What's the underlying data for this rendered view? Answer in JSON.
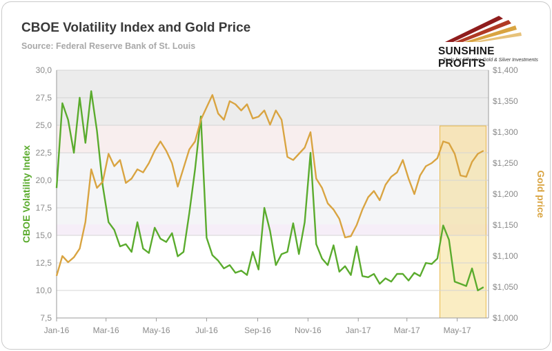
{
  "chart_data": {
    "type": "line",
    "title": "CBOE Volatility Index and Gold Price",
    "subtitle": "Source: Federal Reserve Bank of St. Louis",
    "x_labels": [
      "Jan-16",
      "Mar-16",
      "May-16",
      "Jul-16",
      "Sep-16",
      "Nov-16",
      "Jan-17",
      "Mar-17",
      "May-17"
    ],
    "y_left": {
      "label": "CBOE Volatility Index",
      "min": 7.5,
      "max": 30,
      "ticks": [
        "7,5",
        "10,0",
        "12,5",
        "15,0",
        "17,5",
        "20,0",
        "22,5",
        "25,0",
        "27,5",
        "30,0"
      ],
      "color": "#5aab2d"
    },
    "y_right": {
      "label": "Gold price",
      "min": 1000,
      "max": 1400,
      "ticks": [
        "$1,000",
        "$1,050",
        "$1,100",
        "$1,150",
        "$1,200",
        "$1,250",
        "$1,300",
        "$1,350",
        "$1,400"
      ],
      "color": "#d9a441"
    },
    "grid": true,
    "series": [
      {
        "name": "CBOE Volatility Index",
        "axis": "left",
        "color": "#5aab2d",
        "points": [
          [
            "2016-01-01",
            19.3
          ],
          [
            "2016-01-08",
            27.0
          ],
          [
            "2016-01-15",
            25.5
          ],
          [
            "2016-01-22",
            22.5
          ],
          [
            "2016-01-29",
            27.5
          ],
          [
            "2016-02-05",
            23.4
          ],
          [
            "2016-02-12",
            28.1
          ],
          [
            "2016-02-19",
            24.5
          ],
          [
            "2016-02-26",
            19.5
          ],
          [
            "2016-03-04",
            16.2
          ],
          [
            "2016-03-11",
            15.5
          ],
          [
            "2016-03-18",
            14.0
          ],
          [
            "2016-03-25",
            14.2
          ],
          [
            "2016-04-01",
            13.5
          ],
          [
            "2016-04-08",
            16.2
          ],
          [
            "2016-04-15",
            13.8
          ],
          [
            "2016-04-22",
            13.4
          ],
          [
            "2016-04-29",
            15.7
          ],
          [
            "2016-05-06",
            14.7
          ],
          [
            "2016-05-13",
            14.4
          ],
          [
            "2016-05-20",
            15.2
          ],
          [
            "2016-05-27",
            13.1
          ],
          [
            "2016-06-03",
            13.5
          ],
          [
            "2016-06-10",
            17.0
          ],
          [
            "2016-06-17",
            21.0
          ],
          [
            "2016-06-24",
            25.8
          ],
          [
            "2016-07-01",
            14.8
          ],
          [
            "2016-07-08",
            13.2
          ],
          [
            "2016-07-15",
            12.7
          ],
          [
            "2016-07-22",
            12.0
          ],
          [
            "2016-07-29",
            12.3
          ],
          [
            "2016-08-05",
            11.6
          ],
          [
            "2016-08-12",
            11.8
          ],
          [
            "2016-08-19",
            11.4
          ],
          [
            "2016-08-26",
            13.5
          ],
          [
            "2016-09-02",
            11.9
          ],
          [
            "2016-09-09",
            17.5
          ],
          [
            "2016-09-16",
            15.4
          ],
          [
            "2016-09-23",
            12.3
          ],
          [
            "2016-09-30",
            13.3
          ],
          [
            "2016-10-07",
            13.5
          ],
          [
            "2016-10-14",
            16.1
          ],
          [
            "2016-10-21",
            13.3
          ],
          [
            "2016-10-28",
            16.2
          ],
          [
            "2016-11-04",
            22.5
          ],
          [
            "2016-11-11",
            14.2
          ],
          [
            "2016-11-18",
            12.9
          ],
          [
            "2016-11-25",
            12.3
          ],
          [
            "2016-12-02",
            14.1
          ],
          [
            "2016-12-09",
            11.7
          ],
          [
            "2016-12-16",
            12.2
          ],
          [
            "2016-12-23",
            11.4
          ],
          [
            "2016-12-30",
            14.0
          ],
          [
            "2017-01-06",
            11.3
          ],
          [
            "2017-01-13",
            11.2
          ],
          [
            "2017-01-20",
            11.5
          ],
          [
            "2017-01-27",
            10.6
          ],
          [
            "2017-02-03",
            11.1
          ],
          [
            "2017-02-10",
            10.8
          ],
          [
            "2017-02-17",
            11.5
          ],
          [
            "2017-02-24",
            11.5
          ],
          [
            "2017-03-03",
            10.9
          ],
          [
            "2017-03-10",
            11.6
          ],
          [
            "2017-03-17",
            11.3
          ],
          [
            "2017-03-24",
            12.5
          ],
          [
            "2017-03-31",
            12.4
          ],
          [
            "2017-04-07",
            12.9
          ],
          [
            "2017-04-14",
            15.9
          ],
          [
            "2017-04-21",
            14.6
          ],
          [
            "2017-04-28",
            10.8
          ],
          [
            "2017-05-05",
            10.6
          ],
          [
            "2017-05-12",
            10.4
          ],
          [
            "2017-05-19",
            12.0
          ],
          [
            "2017-05-26",
            10.0
          ],
          [
            "2017-06-02",
            10.3
          ]
        ]
      },
      {
        "name": "Gold price",
        "axis": "right",
        "color": "#d9a441",
        "points": [
          [
            "2016-01-01",
            1068
          ],
          [
            "2016-01-08",
            1100
          ],
          [
            "2016-01-15",
            1090
          ],
          [
            "2016-01-22",
            1098
          ],
          [
            "2016-01-29",
            1112
          ],
          [
            "2016-02-05",
            1155
          ],
          [
            "2016-02-12",
            1240
          ],
          [
            "2016-02-19",
            1210
          ],
          [
            "2016-02-26",
            1220
          ],
          [
            "2016-03-04",
            1265
          ],
          [
            "2016-03-11",
            1245
          ],
          [
            "2016-03-18",
            1255
          ],
          [
            "2016-03-25",
            1218
          ],
          [
            "2016-04-01",
            1225
          ],
          [
            "2016-04-08",
            1240
          ],
          [
            "2016-04-15",
            1235
          ],
          [
            "2016-04-22",
            1250
          ],
          [
            "2016-04-29",
            1270
          ],
          [
            "2016-05-06",
            1285
          ],
          [
            "2016-05-13",
            1270
          ],
          [
            "2016-05-20",
            1250
          ],
          [
            "2016-05-27",
            1212
          ],
          [
            "2016-06-03",
            1242
          ],
          [
            "2016-06-10",
            1272
          ],
          [
            "2016-06-17",
            1285
          ],
          [
            "2016-06-24",
            1320
          ],
          [
            "2016-07-01",
            1340
          ],
          [
            "2016-07-08",
            1360
          ],
          [
            "2016-07-15",
            1330
          ],
          [
            "2016-07-22",
            1320
          ],
          [
            "2016-07-29",
            1350
          ],
          [
            "2016-08-05",
            1345
          ],
          [
            "2016-08-12",
            1335
          ],
          [
            "2016-08-19",
            1345
          ],
          [
            "2016-08-26",
            1322
          ],
          [
            "2016-09-02",
            1325
          ],
          [
            "2016-09-09",
            1335
          ],
          [
            "2016-09-16",
            1312
          ],
          [
            "2016-09-23",
            1335
          ],
          [
            "2016-09-30",
            1320
          ],
          [
            "2016-10-07",
            1260
          ],
          [
            "2016-10-14",
            1255
          ],
          [
            "2016-10-21",
            1265
          ],
          [
            "2016-10-28",
            1275
          ],
          [
            "2016-11-04",
            1300
          ],
          [
            "2016-11-11",
            1225
          ],
          [
            "2016-11-18",
            1210
          ],
          [
            "2016-11-25",
            1185
          ],
          [
            "2016-12-02",
            1175
          ],
          [
            "2016-12-09",
            1160
          ],
          [
            "2016-12-16",
            1130
          ],
          [
            "2016-12-23",
            1132
          ],
          [
            "2016-12-30",
            1150
          ],
          [
            "2017-01-06",
            1175
          ],
          [
            "2017-01-13",
            1195
          ],
          [
            "2017-01-20",
            1205
          ],
          [
            "2017-01-27",
            1190
          ],
          [
            "2017-02-03",
            1215
          ],
          [
            "2017-02-10",
            1228
          ],
          [
            "2017-02-17",
            1235
          ],
          [
            "2017-02-24",
            1255
          ],
          [
            "2017-03-03",
            1225
          ],
          [
            "2017-03-10",
            1200
          ],
          [
            "2017-03-17",
            1230
          ],
          [
            "2017-03-24",
            1245
          ],
          [
            "2017-03-31",
            1250
          ],
          [
            "2017-04-07",
            1258
          ],
          [
            "2017-04-14",
            1285
          ],
          [
            "2017-04-21",
            1282
          ],
          [
            "2017-04-28",
            1265
          ],
          [
            "2017-05-05",
            1230
          ],
          [
            "2017-05-12",
            1228
          ],
          [
            "2017-05-19",
            1252
          ],
          [
            "2017-05-26",
            1265
          ],
          [
            "2017-06-02",
            1270
          ]
        ]
      }
    ],
    "highlight": {
      "from": "2017-04-10",
      "to": "2017-06-05",
      "color": "#f4d67a"
    }
  },
  "logo": {
    "name": "SUNSHINE PROFITS",
    "tagline": "Tools for Effective Gold & Silver Investments"
  }
}
